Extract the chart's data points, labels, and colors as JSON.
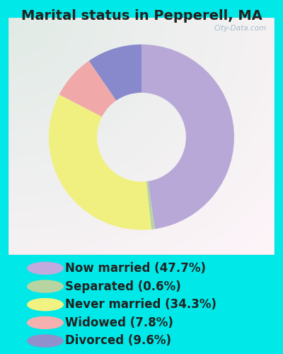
{
  "title": "Marital status in Pepperell, MA",
  "slices": [
    47.7,
    0.6,
    34.3,
    7.8,
    9.6
  ],
  "labels": [
    "Now married (47.7%)",
    "Separated (0.6%)",
    "Never married (34.3%)",
    "Widowed (7.8%)",
    "Divorced (9.6%)"
  ],
  "colors": [
    "#b8a8d8",
    "#b8d4a0",
    "#f0f080",
    "#f0a8a8",
    "#8888cc"
  ],
  "legend_colors": [
    "#c0aade",
    "#b8d4a0",
    "#f2f282",
    "#f5b0b0",
    "#9090cc"
  ],
  "bg_color_outer": "#00e8e8",
  "chart_bg": "#d8f0e0",
  "title_fontsize": 14,
  "legend_fontsize": 12,
  "watermark": "City-Data.com",
  "title_color": "#222222"
}
